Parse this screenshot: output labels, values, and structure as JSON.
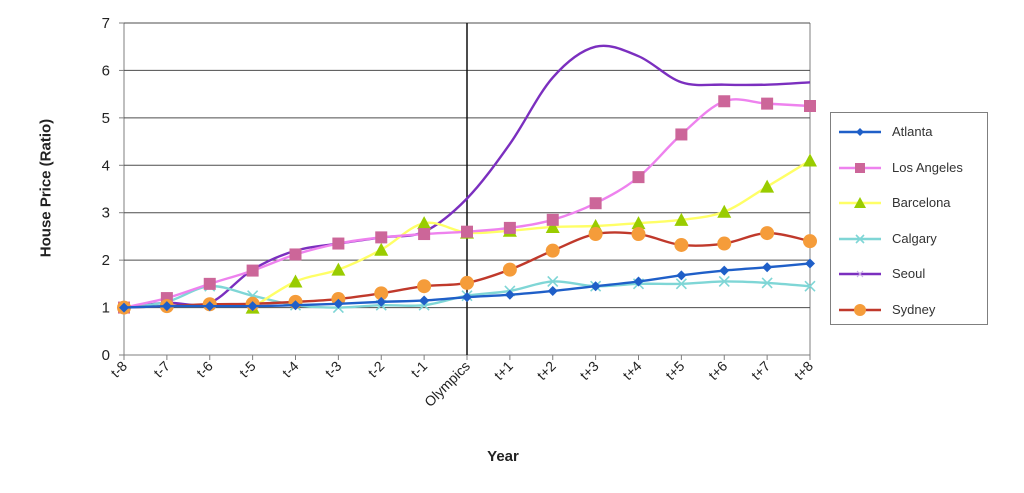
{
  "chart_data": {
    "type": "line",
    "title": "",
    "xlabel": "Year",
    "ylabel": "House Price (Ratio)",
    "ylim": [
      0,
      7
    ],
    "yticks": [
      "0",
      "1",
      "2",
      "3",
      "4",
      "5",
      "6",
      "7"
    ],
    "categories": [
      "t-8",
      "t-7",
      "t-6",
      "t-5",
      "t-4",
      "t-3",
      "t-2",
      "t-1",
      "Olympics",
      "t+1",
      "t+2",
      "t+3",
      "t+4",
      "t+5",
      "t+6",
      "t+7",
      "t+8"
    ],
    "grid": "horizontal",
    "event_marker": "Olympics",
    "legend_position": "right",
    "series": [
      {
        "name": "Atlanta",
        "color": "#1f5fc8",
        "marker": "diamond",
        "values": [
          1.0,
          1.03,
          1.03,
          1.03,
          1.05,
          1.08,
          1.12,
          1.15,
          1.22,
          1.27,
          1.35,
          1.45,
          1.55,
          1.68,
          1.78,
          1.85,
          1.93
        ]
      },
      {
        "name": "Los Angeles",
        "color": "#cc6699",
        "line_color": "#ee82ee",
        "marker": "square",
        "values": [
          1.0,
          1.2,
          1.5,
          1.78,
          2.12,
          2.35,
          2.48,
          2.55,
          2.6,
          2.68,
          2.85,
          3.2,
          3.75,
          4.65,
          5.35,
          5.3,
          5.25
        ]
      },
      {
        "name": "Barcelona",
        "color": "#99cc00",
        "line_color": "#ffff66",
        "marker": "triangle",
        "values": [
          null,
          null,
          null,
          1.0,
          1.55,
          1.8,
          2.22,
          2.78,
          2.58,
          2.62,
          2.7,
          2.72,
          2.78,
          2.85,
          3.02,
          3.55,
          4.1
        ]
      },
      {
        "name": "Calgary",
        "color": "#7fd6d6",
        "marker": "x",
        "values": [
          1.0,
          1.12,
          1.45,
          1.25,
          1.05,
          1.0,
          1.05,
          1.05,
          1.25,
          1.35,
          1.55,
          1.45,
          1.5,
          1.5,
          1.55,
          1.52,
          1.45
        ]
      },
      {
        "name": "Seoul",
        "color": "#7b2fbf",
        "marker": "none",
        "values": [
          1.0,
          1.1,
          1.1,
          1.8,
          2.2,
          2.35,
          2.48,
          2.6,
          3.3,
          4.45,
          5.85,
          6.5,
          6.3,
          5.75,
          5.7,
          5.7,
          5.75
        ]
      },
      {
        "name": "Sydney",
        "color": "#f59c3a",
        "line_color": "#c0392b",
        "marker": "circle",
        "values": [
          1.0,
          1.03,
          1.07,
          1.08,
          1.12,
          1.18,
          1.3,
          1.45,
          1.52,
          1.8,
          2.2,
          2.55,
          2.55,
          2.32,
          2.35,
          2.57,
          2.4
        ]
      }
    ]
  }
}
